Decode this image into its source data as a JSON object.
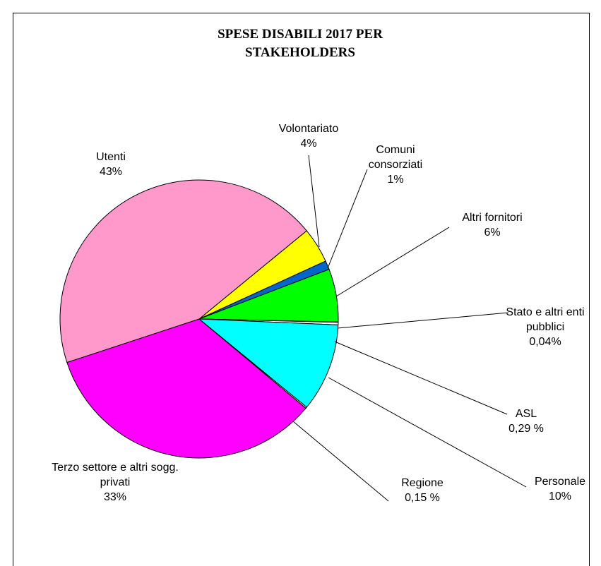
{
  "chart_data": {
    "type": "pie",
    "title": "SPESE DISABILI 2017 PER STAKEHOLDERS",
    "categories": [
      "Volontariato",
      "Comuni consorziati",
      "Altri fornitori",
      "Stato e altri enti pubblici",
      "ASL",
      "Personale",
      "Regione",
      "Terzo settore e altri sogg. privati",
      "Utenti"
    ],
    "values": [
      4,
      1,
      6,
      0.04,
      0.29,
      10,
      0.15,
      33,
      43
    ],
    "value_labels": [
      "4%",
      "1%",
      "6%",
      "0,04%",
      "0,29 %",
      "10%",
      "0,15 %",
      "33%",
      "43%"
    ],
    "colors": [
      "#ffff00",
      "#0066cc",
      "#00ff00",
      "#000080",
      "#ffffff",
      "#00ffff",
      "#ffffcc",
      "#ff00ff",
      "#ff99cc"
    ]
  }
}
